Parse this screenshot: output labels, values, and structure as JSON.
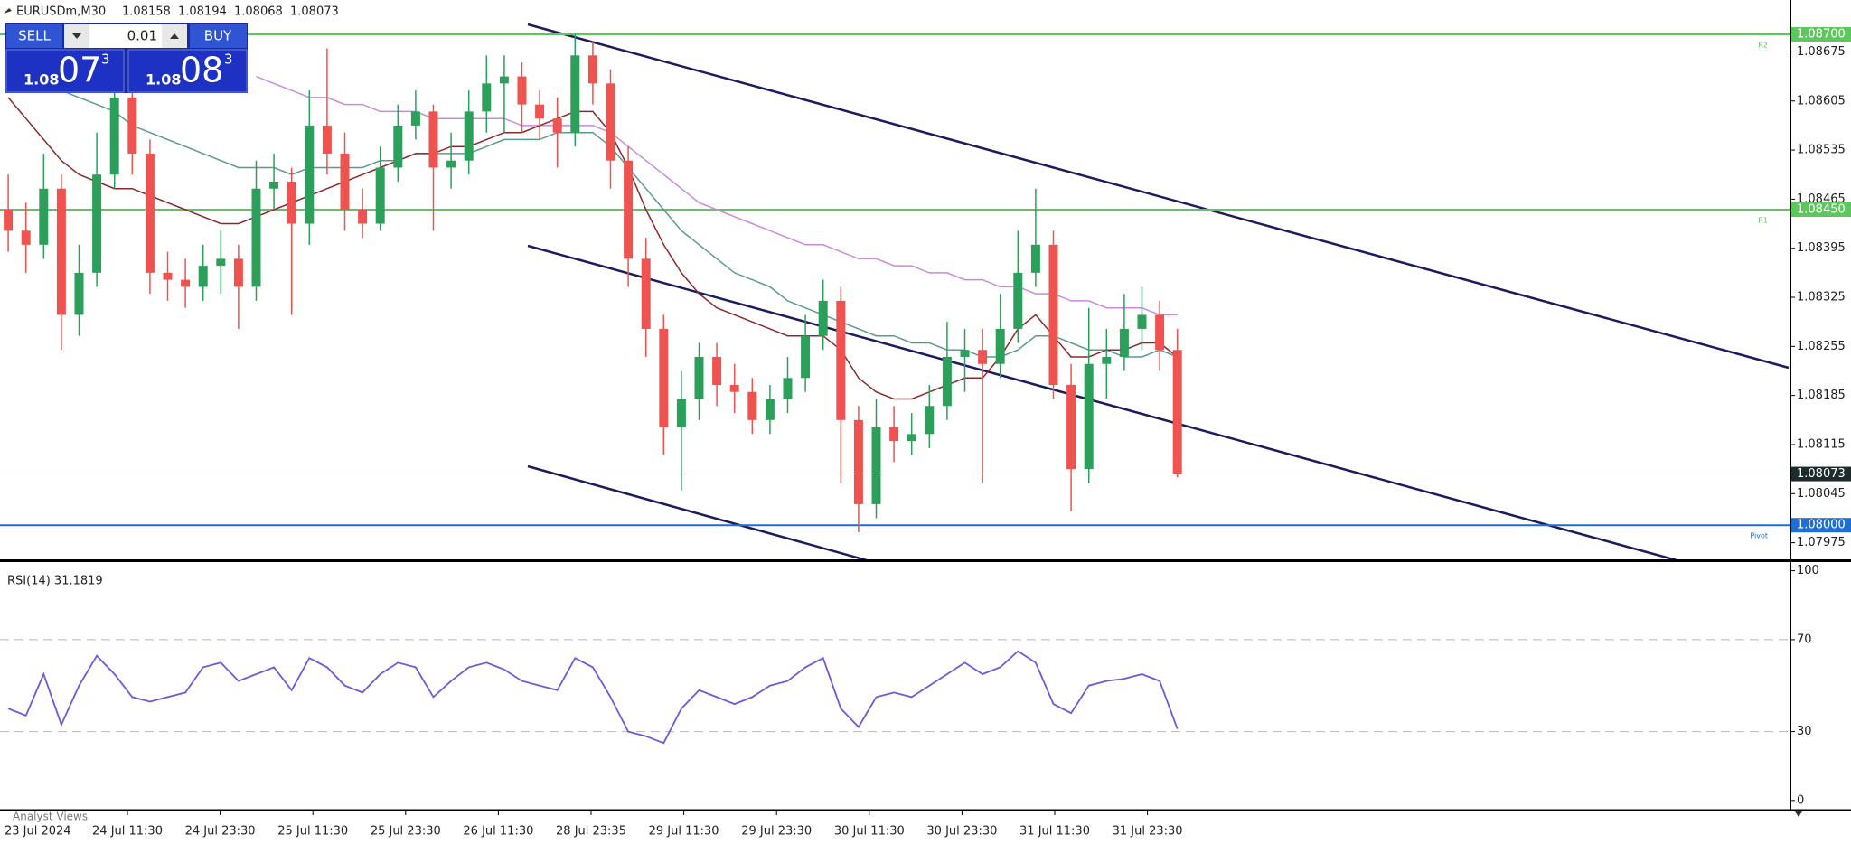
{
  "header": {
    "symbol": "EURUSDm,M30",
    "ohlc": [
      1.08158,
      1.08194,
      1.08068,
      1.08073
    ]
  },
  "trade_panel": {
    "sell": "SELL",
    "lot": "0.01",
    "buy": "BUY",
    "bid": {
      "big": "1.08",
      "pips": "07",
      "point": "3"
    },
    "ask": {
      "big": "1.08",
      "pips": "08",
      "point": "3"
    }
  },
  "price_chart": {
    "type": "candlestick",
    "ylim": [
      1.0795,
      1.0874
    ],
    "yticks": [
      1.08675,
      1.08605,
      1.08535,
      1.08465,
      1.08395,
      1.08325,
      1.08255,
      1.08185,
      1.08115,
      1.08045,
      1.07975
    ],
    "bull_color": "#2ca05a",
    "bear_color": "#ef5350",
    "candles": [
      [
        1.0845,
        1.085,
        1.0839,
        1.0842
      ],
      [
        1.0842,
        1.0846,
        1.0836,
        1.084
      ],
      [
        1.084,
        1.0853,
        1.0838,
        1.0848
      ],
      [
        1.0848,
        1.085,
        1.0825,
        1.083
      ],
      [
        1.083,
        1.084,
        1.0827,
        1.0836
      ],
      [
        1.0836,
        1.0856,
        1.0834,
        1.085
      ],
      [
        1.085,
        1.0866,
        1.0848,
        1.0861
      ],
      [
        1.0861,
        1.0863,
        1.085,
        1.0853
      ],
      [
        1.0853,
        1.0855,
        1.0833,
        1.0836
      ],
      [
        1.0836,
        1.0839,
        1.0832,
        1.0835
      ],
      [
        1.0835,
        1.0838,
        1.0831,
        1.0834
      ],
      [
        1.0834,
        1.084,
        1.0832,
        1.0837
      ],
      [
        1.0837,
        1.0842,
        1.0833,
        1.0838
      ],
      [
        1.0838,
        1.084,
        1.0828,
        1.0834
      ],
      [
        1.0834,
        1.0852,
        1.0832,
        1.0848
      ],
      [
        1.0848,
        1.0853,
        1.0845,
        1.0849
      ],
      [
        1.0849,
        1.0851,
        1.083,
        1.0843
      ],
      [
        1.0843,
        1.0862,
        1.084,
        1.0857
      ],
      [
        1.0857,
        1.0868,
        1.085,
        1.0853
      ],
      [
        1.0853,
        1.0856,
        1.0842,
        1.0845
      ],
      [
        1.0845,
        1.0848,
        1.0841,
        1.0843
      ],
      [
        1.0843,
        1.0854,
        1.0842,
        1.0851
      ],
      [
        1.0851,
        1.086,
        1.0849,
        1.0857
      ],
      [
        1.0857,
        1.0862,
        1.0855,
        1.0859
      ],
      [
        1.0859,
        1.086,
        1.0842,
        1.0851
      ],
      [
        1.0851,
        1.0856,
        1.0848,
        1.0852
      ],
      [
        1.0852,
        1.0862,
        1.085,
        1.0859
      ],
      [
        1.0859,
        1.0867,
        1.0856,
        1.0863
      ],
      [
        1.0863,
        1.0867,
        1.0856,
        1.0864
      ],
      [
        1.0864,
        1.0866,
        1.0856,
        1.086
      ],
      [
        1.086,
        1.0862,
        1.0855,
        1.0858
      ],
      [
        1.0858,
        1.0861,
        1.0851,
        1.0856
      ],
      [
        1.0856,
        1.087,
        1.0854,
        1.0867
      ],
      [
        1.0867,
        1.0869,
        1.086,
        1.0863
      ],
      [
        1.0863,
        1.0865,
        1.0848,
        1.0852
      ],
      [
        1.0852,
        1.0854,
        1.0834,
        1.0838
      ],
      [
        1.0838,
        1.0841,
        1.0824,
        1.0828
      ],
      [
        1.0828,
        1.083,
        1.081,
        1.0814
      ],
      [
        1.0814,
        1.0822,
        1.0805,
        1.0818
      ],
      [
        1.0818,
        1.0826,
        1.0815,
        1.0824
      ],
      [
        1.0824,
        1.0826,
        1.0817,
        1.082
      ],
      [
        1.082,
        1.0823,
        1.0816,
        1.0819
      ],
      [
        1.0819,
        1.0821,
        1.0813,
        1.0815
      ],
      [
        1.0815,
        1.082,
        1.0813,
        1.0818
      ],
      [
        1.0818,
        1.0824,
        1.0816,
        1.0821
      ],
      [
        1.0821,
        1.083,
        1.0819,
        1.0827
      ],
      [
        1.0827,
        1.0835,
        1.0825,
        1.0832
      ],
      [
        1.0832,
        1.0834,
        1.0806,
        1.0815
      ],
      [
        1.0815,
        1.0817,
        1.0799,
        1.0803
      ],
      [
        1.0803,
        1.0818,
        1.0801,
        1.0814
      ],
      [
        1.0814,
        1.0817,
        1.0809,
        1.0812
      ],
      [
        1.0812,
        1.0816,
        1.081,
        1.0813
      ],
      [
        1.0813,
        1.082,
        1.0811,
        1.0817
      ],
      [
        1.0817,
        1.0829,
        1.0815,
        1.0824
      ],
      [
        1.0824,
        1.0828,
        1.0819,
        1.0825
      ],
      [
        1.0825,
        1.0828,
        1.0806,
        1.0823
      ],
      [
        1.0823,
        1.0833,
        1.0821,
        1.0828
      ],
      [
        1.0828,
        1.0842,
        1.0826,
        1.0836
      ],
      [
        1.0836,
        1.0848,
        1.0834,
        1.084
      ],
      [
        1.084,
        1.0842,
        1.0818,
        1.082
      ],
      [
        1.082,
        1.0823,
        1.0802,
        1.0808
      ],
      [
        1.0808,
        1.0831,
        1.0806,
        1.0823
      ],
      [
        1.0823,
        1.0828,
        1.0818,
        1.0824
      ],
      [
        1.0824,
        1.0833,
        1.0822,
        1.0828
      ],
      [
        1.0828,
        1.0834,
        1.0825,
        1.083
      ],
      [
        1.083,
        1.0832,
        1.0822,
        1.0825
      ],
      [
        1.0825,
        1.0828,
        1.08068,
        1.08073
      ]
    ],
    "moving_averages": [
      {
        "color": "#c98ad8",
        "values": [
          null,
          null,
          null,
          null,
          null,
          null,
          null,
          null,
          null,
          null,
          null,
          null,
          null,
          null,
          1.0864,
          1.0863,
          1.0862,
          1.0861,
          1.0861,
          1.086,
          1.086,
          1.0859,
          1.0859,
          1.0859,
          1.0858,
          1.0858,
          1.0858,
          1.0858,
          1.0858,
          1.0857,
          1.0857,
          1.0857,
          1.0857,
          1.0857,
          1.0856,
          1.0854,
          1.0852,
          1.085,
          1.0848,
          1.0846,
          1.0845,
          1.0844,
          1.0843,
          1.0842,
          1.0841,
          1.084,
          1.084,
          1.0839,
          1.0838,
          1.0838,
          1.0837,
          1.0837,
          1.0836,
          1.0836,
          1.0835,
          1.0835,
          1.0834,
          1.0834,
          1.0833,
          1.0833,
          1.0832,
          1.0832,
          1.0831,
          1.0831,
          1.0831,
          1.083,
          1.083
        ]
      },
      {
        "color": "#5a9a8e",
        "values": [
          1.0865,
          1.0864,
          1.0863,
          1.0862,
          1.0861,
          1.086,
          1.0859,
          1.0857,
          1.0856,
          1.0855,
          1.0854,
          1.0853,
          1.0852,
          1.0851,
          1.0851,
          1.0851,
          1.085,
          1.0851,
          1.0851,
          1.0851,
          1.0851,
          1.0852,
          1.0852,
          1.0853,
          1.0853,
          1.0853,
          1.0853,
          1.0854,
          1.0855,
          1.0855,
          1.0855,
          1.0856,
          1.0856,
          1.0856,
          1.0854,
          1.0851,
          1.0848,
          1.0845,
          1.0842,
          1.084,
          1.0838,
          1.0836,
          1.0835,
          1.0834,
          1.0832,
          1.0831,
          1.083,
          1.0829,
          1.0828,
          1.0827,
          1.0827,
          1.0826,
          1.0826,
          1.0825,
          1.0825,
          1.0824,
          1.0824,
          1.0825,
          1.0827,
          1.0827,
          1.0826,
          1.0825,
          1.0825,
          1.0824,
          1.0824,
          1.0825,
          1.0824
        ]
      },
      {
        "color": "#8b2a2a",
        "values": [
          1.0861,
          1.0858,
          1.0855,
          1.0852,
          1.085,
          1.0849,
          1.0848,
          1.0848,
          1.0847,
          1.0846,
          1.0845,
          1.0844,
          1.0843,
          1.0843,
          1.0844,
          1.0845,
          1.0846,
          1.0847,
          1.0848,
          1.0849,
          1.085,
          1.0851,
          1.0852,
          1.0853,
          1.0853,
          1.0854,
          1.0854,
          1.0855,
          1.0856,
          1.0856,
          1.0857,
          1.0858,
          1.0859,
          1.0859,
          1.0856,
          1.0851,
          1.0845,
          1.084,
          1.0836,
          1.0833,
          1.0831,
          1.083,
          1.0829,
          1.0828,
          1.0827,
          1.0827,
          1.0827,
          1.0825,
          1.0821,
          1.0819,
          1.0818,
          1.0818,
          1.0819,
          1.082,
          1.0821,
          1.0821,
          1.0824,
          1.0828,
          1.083,
          1.0827,
          1.0824,
          1.0824,
          1.0825,
          1.0825,
          1.0826,
          1.0826,
          1.0824
        ]
      }
    ],
    "levels": [
      {
        "value": {
          "value": 1.087,
          "label": "1.08700"
        },
        "color": "#5cc75c",
        "tag": "R2"
      },
      {
        "value": {
          "value": 1.0845,
          "label": "1.08450"
        },
        "color": "#5cc75c",
        "tag": "R1"
      },
      {
        "value": {
          "value": 1.08,
          "label": "1.08000"
        },
        "color": "#1f6fd1",
        "tag": "Pivot"
      }
    ],
    "current_price": 1.08073
  },
  "rsi_chart": {
    "type": "line",
    "title": "RSI(14) 31.1819",
    "color": "#6b5bd6",
    "ylim": [
      -4,
      103
    ],
    "yticks": [
      100,
      70,
      30,
      0
    ],
    "levels": [
      70,
      30
    ],
    "values": [
      40,
      37,
      55,
      33,
      50,
      63,
      55,
      45,
      43,
      45,
      47,
      58,
      60,
      52,
      55,
      58,
      48,
      62,
      58,
      50,
      47,
      55,
      60,
      58,
      45,
      52,
      58,
      60,
      57,
      52,
      50,
      48,
      62,
      58,
      45,
      30,
      28,
      25,
      40,
      48,
      45,
      42,
      45,
      50,
      52,
      58,
      62,
      40,
      32,
      45,
      47,
      45,
      50,
      55,
      60,
      55,
      58,
      65,
      60,
      42,
      38,
      50,
      52,
      53,
      55,
      52,
      31.1819
    ]
  },
  "time_axis": {
    "labels": [
      "23 Jul 2024",
      "24 Jul 11:30",
      "24 Jul 23:30",
      "25 Jul 11:30",
      "25 Jul 23:30",
      "26 Jul 11:30",
      "28 Jul 23:35",
      "29 Jul 11:30",
      "29 Jul 23:30",
      "30 Jul 11:30",
      "30 Jul 23:30",
      "31 Jul 11:30",
      "31 Jul 23:30"
    ]
  },
  "footer": "Analyst Views"
}
